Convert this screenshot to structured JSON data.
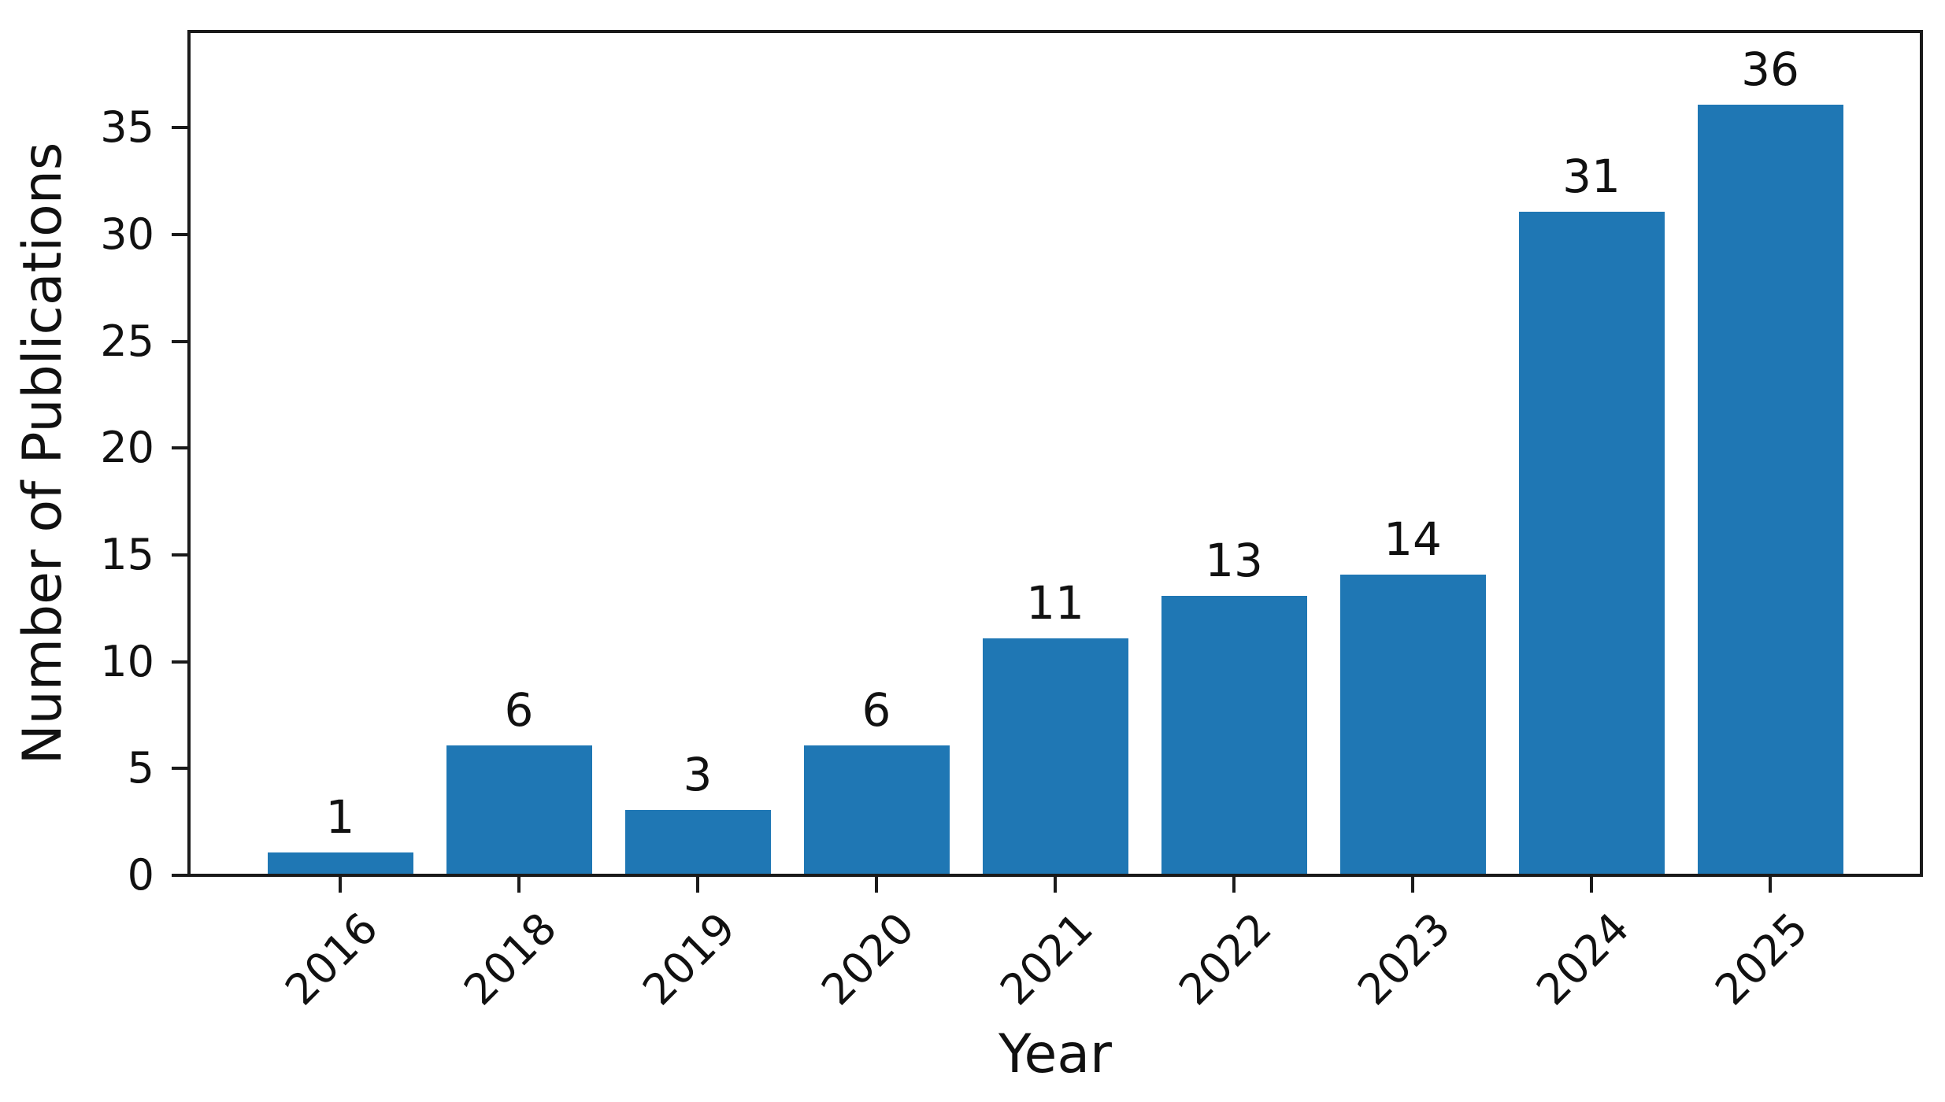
{
  "chart_data": {
    "type": "bar",
    "categories": [
      "2016",
      "2018",
      "2019",
      "2020",
      "2021",
      "2022",
      "2023",
      "2024",
      "2025"
    ],
    "values": [
      1,
      6,
      3,
      6,
      11,
      13,
      14,
      31,
      36
    ],
    "bar_labels": [
      "1",
      "6",
      "3",
      "6",
      "11",
      "13",
      "14",
      "31",
      "36"
    ],
    "title": "",
    "xlabel": "Year",
    "ylabel": "Number of Publications",
    "yticks": [
      0,
      5,
      10,
      15,
      20,
      25,
      30,
      35
    ],
    "ylim": [
      0,
      39.5
    ],
    "xtick_rotation_deg": 45,
    "grid": "off",
    "legend": "none",
    "bar_color": "#1f77b4",
    "axis_color": "#1a1a1a",
    "text_color": "#111111",
    "background_color": "#ffffff"
  }
}
